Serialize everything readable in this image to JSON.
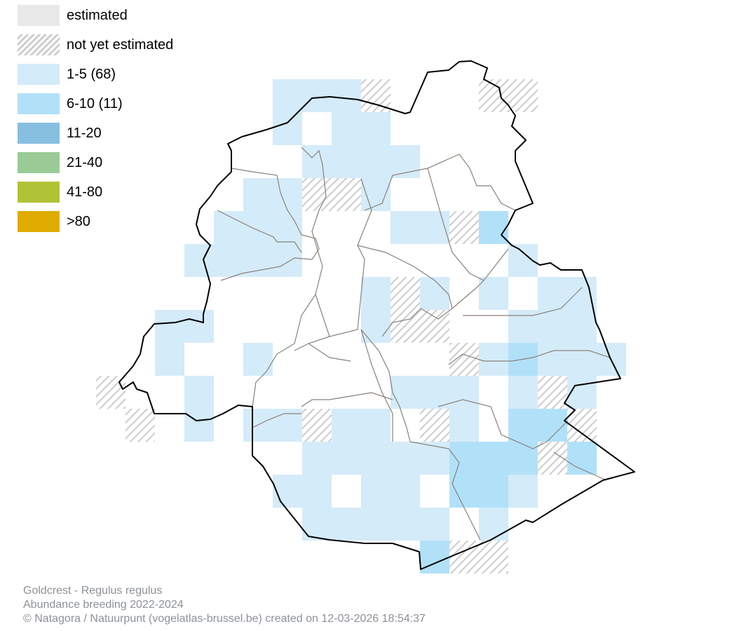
{
  "legend": [
    {
      "label": "estimated",
      "color": "#e8e8e8",
      "pattern": "solid"
    },
    {
      "label": "not yet estimated",
      "color": "#cccccc",
      "pattern": "hatch"
    },
    {
      "label": "1-5 (68)",
      "color": "#d4ebf9",
      "pattern": "solid"
    },
    {
      "label": "6-10 (11)",
      "color": "#b1e1f9",
      "pattern": "solid"
    },
    {
      "label": "11-20",
      "color": "#86bfdf",
      "pattern": "solid"
    },
    {
      "label": "21-40",
      "color": "#9acb96",
      "pattern": "solid"
    },
    {
      "label": "41-80",
      "color": "#b0c236",
      "pattern": "solid"
    },
    {
      "label": ">80",
      "color": "#e0ac00",
      "pattern": "solid"
    }
  ],
  "grid": {
    "key": {
      "a": "1-5",
      "b": "6-10",
      "h": "not yet estimated"
    },
    "colors": {
      "a": "#d4ebf9",
      "b": "#b1e1f9"
    },
    "rows": [
      "......aaah...hh....",
      "......a.aa.........",
      ".......aaaa........",
      ".....aahha.........",
      "....aaa...aahb.....",
      "...aaaa.......a....",
      ".........aha.a.aa..",
      "..aa.....ahh..aaa..",
      "..a..a......habaaa.",
      "h..a......aaa.aha..",
      ".h.a.aahaa.ha.bbh..",
      ".......aaaaabbbhb..",
      "......aa.aa.bba....",
      ".......aaaaa.a.....",
      "...........bhh....."
    ]
  },
  "footer": {
    "species": "Goldcrest - Regulus regulus",
    "subtitle": "Abundance breeding 2022-2024",
    "credit": "© Natagora / Natuurpunt (vogelatlas-brussel.be) created on 12-03-2026 18:54:37"
  }
}
